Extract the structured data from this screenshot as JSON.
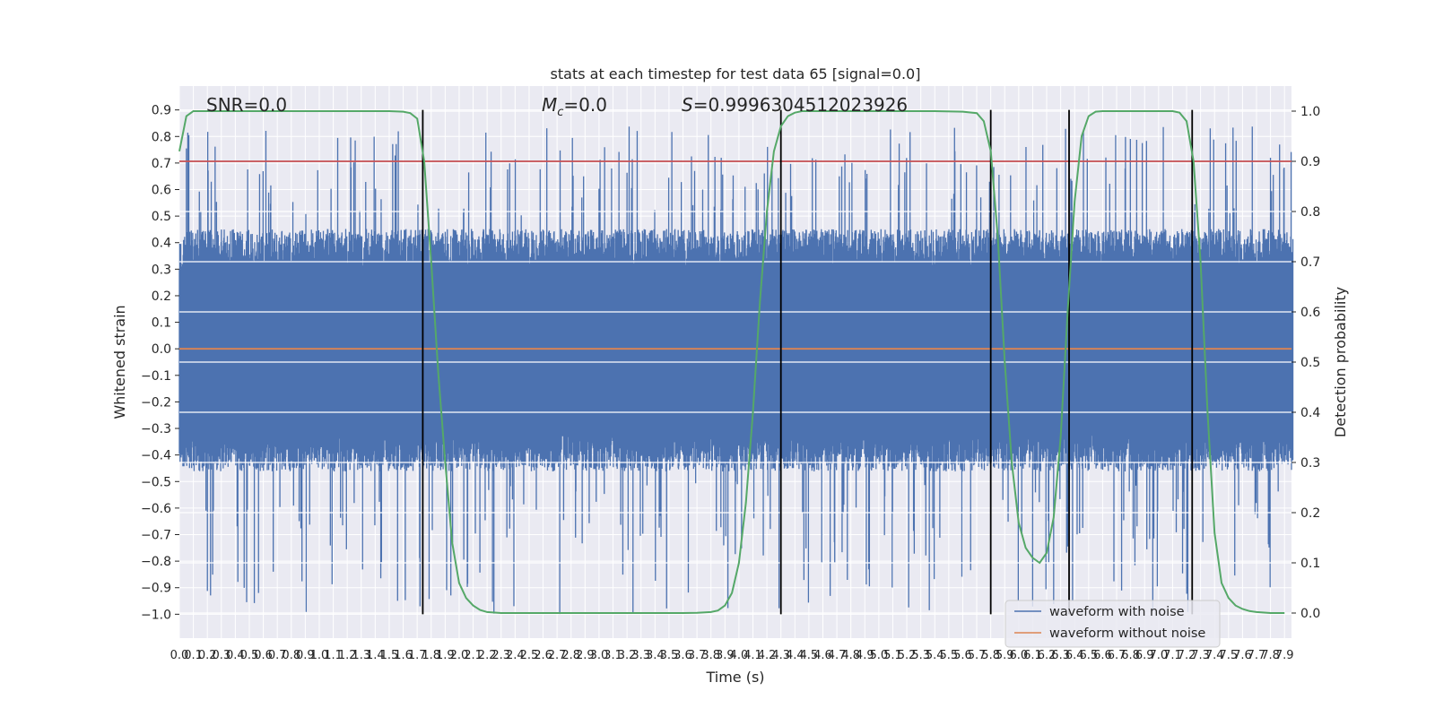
{
  "chart_data": {
    "type": "line",
    "title": "stats at each timestep for test data 65 [signal=0.0]",
    "xlabel": "Time (s)",
    "ylabel": "Whitened strain",
    "y2label": "Detection probability",
    "xlim": [
      0.0,
      7.95
    ],
    "ylim": [
      -1.09,
      0.99
    ],
    "y2lim": [
      -0.05,
      1.05
    ],
    "grid": true,
    "x_ticks": [
      0.0,
      0.1,
      0.2,
      0.3,
      0.4,
      0.5,
      0.6,
      0.7,
      0.8,
      0.9,
      1.0,
      1.1,
      1.2,
      1.3,
      1.4,
      1.5,
      1.6,
      1.7,
      1.8,
      1.9,
      2.0,
      2.1,
      2.2,
      2.3,
      2.4,
      2.5,
      2.6,
      2.7,
      2.8,
      2.9,
      3.0,
      3.1,
      3.2,
      3.3,
      3.4,
      3.5,
      3.6,
      3.7,
      3.8,
      3.9,
      4.0,
      4.1,
      4.2,
      4.3,
      4.4,
      4.5,
      4.6,
      4.7,
      4.8,
      4.9,
      5.0,
      5.1,
      5.2,
      5.3,
      5.4,
      5.5,
      5.6,
      5.7,
      5.8,
      5.9,
      6.0,
      6.1,
      6.2,
      6.3,
      6.4,
      6.5,
      6.6,
      6.7,
      6.8,
      6.9,
      7.0,
      7.1,
      7.2,
      7.3,
      7.4,
      7.5,
      7.6,
      7.7,
      7.8,
      7.9
    ],
    "x_tick_labels": [
      "0.0",
      "0.1",
      "0.2",
      "0.3",
      "0.4",
      "0.5",
      "0.6",
      "0.7",
      "0.8",
      "0.9",
      "1.0",
      "1.1",
      "1.2",
      "1.3",
      "1.4",
      "1.5",
      "1.6",
      "1.7",
      "1.8",
      "1.9",
      "2.0",
      "2.1",
      "2.2",
      "2.3",
      "2.4",
      "2.5",
      "2.6",
      "2.7",
      "2.8",
      "2.9",
      "3.0",
      "3.1",
      "3.2",
      "3.3",
      "3.4",
      "3.5",
      "3.6",
      "3.7",
      "3.8",
      "3.9",
      "4.0",
      "4.1",
      "4.2",
      "4.3",
      "4.4",
      "4.5",
      "4.6",
      "4.7",
      "4.8",
      "4.9",
      "5.0",
      "5.1",
      "5.2",
      "5.3",
      "5.4",
      "5.5",
      "5.6",
      "5.7",
      "5.8",
      "5.9",
      "6.0",
      "6.1",
      "6.2",
      "6.3",
      "6.4",
      "6.5",
      "6.6",
      "6.7",
      "6.8",
      "6.9",
      "7.0",
      "7.1",
      "7.2",
      "7.3",
      "7.4",
      "7.5",
      "7.6",
      "7.7",
      "7.8",
      "7.9"
    ],
    "y_ticks": [
      0.9,
      0.8,
      0.7,
      0.6,
      0.5,
      0.4,
      0.3,
      0.2,
      0.1,
      0.0,
      -0.1,
      -0.2,
      -0.3,
      -0.4,
      -0.5,
      -0.6,
      -0.7,
      -0.8,
      -0.9,
      -1.0
    ],
    "y_tick_labels": [
      "0.9",
      "0.8",
      "0.7",
      "0.6",
      "0.5",
      "0.4",
      "0.3",
      "0.2",
      "0.1",
      "0.0",
      "−0.1",
      "−0.2",
      "−0.3",
      "−0.4",
      "−0.5",
      "−0.6",
      "−0.7",
      "−0.8",
      "−0.9",
      "−1.0"
    ],
    "y2_ticks": [
      1.0,
      0.9,
      0.8,
      0.7,
      0.6,
      0.5,
      0.4,
      0.3,
      0.2,
      0.1,
      0.0
    ],
    "y2_tick_labels": [
      "1.0",
      "0.9",
      "0.8",
      "0.7",
      "0.6",
      "0.5",
      "0.4",
      "0.3",
      "0.2",
      "0.1",
      "0.0"
    ],
    "series": [
      {
        "name": "waveform with noise",
        "color": "#4c72b0",
        "style": "noise",
        "typical_range": [
          -0.42,
          0.43
        ],
        "max": 0.84,
        "min": -1.0,
        "samples": 3180
      },
      {
        "name": "waveform without noise",
        "color": "#dd8452",
        "values_constant": 0.0
      }
    ],
    "detection_probability": {
      "color": "#55a868",
      "x": [
        0.0,
        0.05,
        0.1,
        0.2,
        0.3,
        0.4,
        0.6,
        0.8,
        1.0,
        1.2,
        1.4,
        1.5,
        1.6,
        1.65,
        1.7,
        1.75,
        1.8,
        1.85,
        1.9,
        1.95,
        2.0,
        2.05,
        2.1,
        2.15,
        2.2,
        2.3,
        2.4,
        2.6,
        2.8,
        3.0,
        3.2,
        3.4,
        3.6,
        3.7,
        3.8,
        3.85,
        3.9,
        3.95,
        4.0,
        4.05,
        4.1,
        4.15,
        4.2,
        4.25,
        4.3,
        4.35,
        4.4,
        4.45,
        4.5,
        4.6,
        4.8,
        5.0,
        5.2,
        5.4,
        5.6,
        5.7,
        5.75,
        5.8,
        5.85,
        5.9,
        5.95,
        6.0,
        6.05,
        6.1,
        6.15,
        6.2,
        6.25,
        6.3,
        6.35,
        6.4,
        6.45,
        6.5,
        6.55,
        6.6,
        6.7,
        6.8,
        6.9,
        7.0,
        7.1,
        7.15,
        7.2,
        7.25,
        7.3,
        7.35,
        7.4,
        7.45,
        7.5,
        7.55,
        7.6,
        7.65,
        7.7,
        7.8,
        7.9
      ],
      "y": [
        0.92,
        0.99,
        1.0,
        1.0,
        1.0,
        1.0,
        1.0,
        1.0,
        1.0,
        1.0,
        1.0,
        1.0,
        0.999,
        0.996,
        0.985,
        0.9,
        0.7,
        0.48,
        0.3,
        0.14,
        0.06,
        0.03,
        0.015,
        0.006,
        0.002,
        0.0,
        0.0,
        0.0,
        0.0,
        0.0,
        0.0,
        0.0,
        0.0,
        0.0005,
        0.002,
        0.005,
        0.015,
        0.04,
        0.1,
        0.22,
        0.4,
        0.62,
        0.8,
        0.92,
        0.97,
        0.99,
        0.997,
        1.0,
        1.0,
        1.0,
        1.0,
        1.0,
        1.0,
        1.0,
        0.999,
        0.996,
        0.98,
        0.92,
        0.75,
        0.5,
        0.3,
        0.18,
        0.13,
        0.11,
        0.1,
        0.12,
        0.19,
        0.35,
        0.6,
        0.82,
        0.95,
        0.99,
        0.999,
        1.0,
        1.0,
        1.0,
        1.0,
        1.0,
        1.0,
        0.997,
        0.98,
        0.9,
        0.7,
        0.4,
        0.16,
        0.06,
        0.03,
        0.015,
        0.008,
        0.004,
        0.002,
        0.0,
        0.0
      ]
    },
    "threshold": {
      "y2": 0.9,
      "color": "#c44e52"
    },
    "vertical_markers_x": [
      1.74,
      4.3,
      5.8,
      6.36,
      7.24
    ],
    "vertical_marker_range": [
      -1.0,
      0.9
    ],
    "annotations": {
      "snr": "SNR=0.0",
      "mc": "=0.0",
      "mc_symbol": "M",
      "mc_sub": "c",
      "s": "=0.9996304512023926",
      "s_symbol": "S"
    },
    "legend": {
      "placement": "lower-right",
      "items": [
        "waveform with noise",
        "waveform without noise"
      ]
    }
  }
}
